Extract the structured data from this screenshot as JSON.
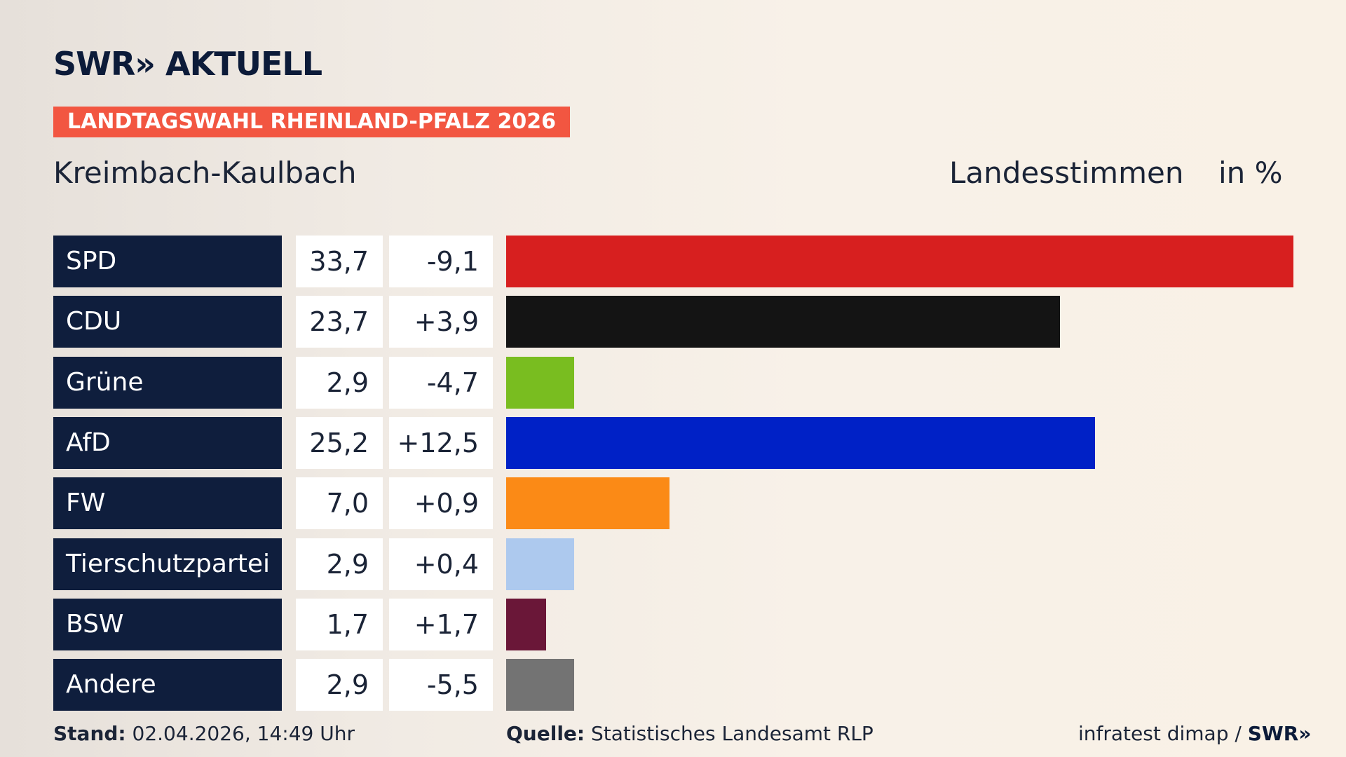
{
  "header": {
    "logo": "SWR» AKTUELL",
    "tag": "LANDTAGSWAHL RHEINLAND-PFALZ 2026",
    "place": "Kreimbach-Kaulbach",
    "vote_type": "Landesstimmen",
    "unit": "in %"
  },
  "chart_data": {
    "type": "bar",
    "orientation": "horizontal",
    "categories": [
      "SPD",
      "CDU",
      "Grüne",
      "AfD",
      "FW",
      "Tierschutzpartei",
      "BSW",
      "Andere"
    ],
    "values": [
      33.7,
      23.7,
      2.9,
      25.2,
      7.0,
      2.9,
      1.7,
      2.9
    ],
    "value_labels": [
      "33,7",
      "23,7",
      "2,9",
      "25,2",
      "7,0",
      "2,9",
      "1,7",
      "2,9"
    ],
    "diff_labels": [
      "-9,1",
      "+3,9",
      "-4,7",
      "+12,5",
      "+0,9",
      "+0,4",
      "+1,7",
      "-5,5"
    ],
    "colors": [
      "#d71f1f",
      "#141414",
      "#79bd20",
      "#0021c6",
      "#fb8a16",
      "#adc9ee",
      "#6a1738",
      "#737373"
    ],
    "xlim": [
      0,
      33.7
    ]
  },
  "footer": {
    "stand_label": "Stand:",
    "stand_value": "02.04.2026, 14:49 Uhr",
    "quelle_label": "Quelle:",
    "quelle_value": "Statistisches Landesamt RLP",
    "credit": "infratest dimap / ",
    "credit_brand": "SWR»"
  }
}
